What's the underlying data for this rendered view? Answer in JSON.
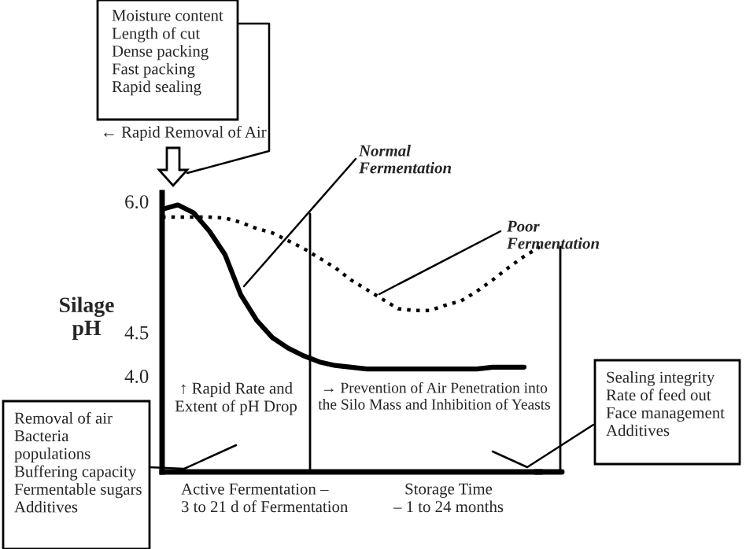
{
  "chart_data": {
    "type": "line",
    "ylabel": "Silage\npH",
    "categories": [
      null,
      null,
      null,
      null,
      null,
      null,
      null,
      null,
      null,
      null,
      null,
      null,
      null,
      null,
      null,
      null,
      null,
      null,
      null,
      null,
      null,
      null,
      null,
      null,
      null
    ],
    "series": [
      {
        "name": "Normal Fermentation",
        "color": "#000000",
        "line_style": "solid",
        "values": [
          5.91,
          5.96,
          5.87,
          5.66,
          5.39,
          4.93,
          4.64,
          4.44,
          4.32,
          4.23,
          4.16,
          4.12,
          4.1,
          4.08,
          4.08,
          4.08,
          4.08,
          4.08,
          4.08,
          4.08,
          4.08,
          4.1,
          4.1,
          4.1,
          null
        ]
      },
      {
        "name": "Poor Fermentation",
        "color": "#000000",
        "line_style": "dotted",
        "values": [
          5.82,
          5.82,
          5.82,
          5.82,
          5.81,
          5.76,
          5.69,
          5.64,
          5.55,
          5.46,
          5.35,
          5.24,
          5.1,
          4.99,
          4.88,
          4.77,
          4.75,
          4.75,
          4.81,
          4.86,
          4.97,
          5.1,
          5.24,
          5.37,
          5.48
        ]
      }
    ],
    "ylim": [
      2.9,
      6.1
    ],
    "yticks": [
      {
        "value": 6.0,
        "label": "6.0"
      },
      4.5,
      {
        "value": 4.0,
        "label": "4.0"
      }
    ],
    "annotations": [
      "Moisture content\nLength of cut\nDense packing\nFast packing\nRapid sealing",
      "← Rapid Removal of Air",
      "↑ Rapid Rate and\nExtent of pH Drop",
      "→ Prevention of Air Penetration into\nthe Silo Mass and Inhibition of Yeasts",
      "Removal of air\nBacteria\npopulations\nBuffering capacity\nFermentable sugars\nAdditives",
      "Sealing integrity\nRate of feed out\nFace management\nAdditives",
      "Active Fermentation –\n3 to 21 d of Fermentation",
      "Storage Time\n– 1 to 24 months"
    ],
    "grid": false,
    "legend": false,
    "marker": "none"
  }
}
